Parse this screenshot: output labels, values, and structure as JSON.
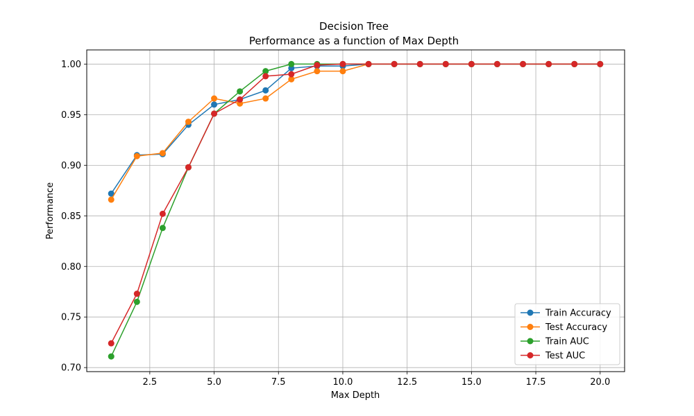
{
  "chart_data": {
    "type": "line",
    "title": "Decision Tree",
    "subtitle": "Performance as a function of Max Depth",
    "xlabel": "Max Depth",
    "ylabel": "Performance",
    "xlim": [
      0.05,
      20.95
    ],
    "ylim": [
      0.696,
      1.014
    ],
    "x_ticks": [
      2.5,
      5.0,
      7.5,
      10.0,
      12.5,
      15.0,
      17.5,
      20.0
    ],
    "x_tick_labels": [
      "2.5",
      "5.0",
      "7.5",
      "10.0",
      "12.5",
      "15.0",
      "17.5",
      "20.0"
    ],
    "y_ticks": [
      0.7,
      0.75,
      0.8,
      0.85,
      0.9,
      0.95,
      1.0
    ],
    "y_tick_labels": [
      "0.70",
      "0.75",
      "0.80",
      "0.85",
      "0.90",
      "0.95",
      "1.00"
    ],
    "grid": true,
    "legend_position": "lower-right",
    "x": [
      1,
      2,
      3,
      4,
      5,
      6,
      7,
      8,
      9,
      10,
      11,
      12,
      13,
      14,
      15,
      16,
      17,
      18,
      19,
      20
    ],
    "series": [
      {
        "name": "Train Accuracy",
        "color": "#1f77b4",
        "values": [
          0.872,
          0.91,
          0.911,
          0.94,
          0.96,
          0.965,
          0.974,
          0.996,
          0.998,
          0.998,
          1.0,
          1.0,
          1.0,
          1.0,
          1.0,
          1.0,
          1.0,
          1.0,
          1.0,
          1.0
        ]
      },
      {
        "name": "Test Accuracy",
        "color": "#ff7f0e",
        "values": [
          0.866,
          0.909,
          0.912,
          0.943,
          0.966,
          0.961,
          0.966,
          0.985,
          0.993,
          0.993,
          1.0,
          1.0,
          1.0,
          1.0,
          1.0,
          1.0,
          1.0,
          1.0,
          1.0,
          1.0
        ]
      },
      {
        "name": "Train AUC",
        "color": "#2ca02c",
        "values": [
          0.711,
          0.765,
          0.838,
          0.898,
          0.951,
          0.973,
          0.993,
          1.0,
          1.0,
          1.0,
          1.0,
          1.0,
          1.0,
          1.0,
          1.0,
          1.0,
          1.0,
          1.0,
          1.0,
          1.0
        ]
      },
      {
        "name": "Test AUC",
        "color": "#d62728",
        "values": [
          0.724,
          0.773,
          0.852,
          0.898,
          0.951,
          0.965,
          0.988,
          0.99,
          0.999,
          1.0,
          1.0,
          1.0,
          1.0,
          1.0,
          1.0,
          1.0,
          1.0,
          1.0,
          1.0,
          1.0
        ]
      }
    ]
  }
}
